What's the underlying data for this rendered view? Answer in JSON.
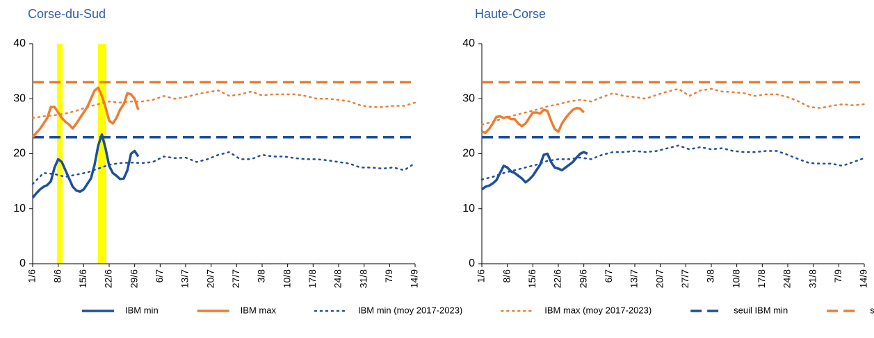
{
  "chart_data": [
    {
      "type": "line",
      "title": "Corse-du-Sud",
      "xlim": [
        0,
        105
      ],
      "ylim": [
        0,
        40
      ],
      "yticks": [
        0,
        10,
        20,
        30,
        40
      ],
      "xticks": [
        {
          "value": 0,
          "label": "1/6"
        },
        {
          "value": 7,
          "label": "8/6"
        },
        {
          "value": 14,
          "label": "15/6"
        },
        {
          "value": 21,
          "label": "22/6"
        },
        {
          "value": 28,
          "label": "29/6"
        },
        {
          "value": 35,
          "label": "6/7"
        },
        {
          "value": 42,
          "label": "13/7"
        },
        {
          "value": 49,
          "label": "20/7"
        },
        {
          "value": 56,
          "label": "27/7"
        },
        {
          "value": 63,
          "label": "3/8"
        },
        {
          "value": 70,
          "label": "10/8"
        },
        {
          "value": 77,
          "label": "17/8"
        },
        {
          "value": 84,
          "label": "24/8"
        },
        {
          "value": 91,
          "label": "31/8"
        },
        {
          "value": 98,
          "label": "7/9"
        },
        {
          "value": 105,
          "label": "14/9"
        }
      ],
      "bands": [
        {
          "from": 6.7,
          "to": 8.2,
          "color": "#ffff00"
        },
        {
          "from": 17.9,
          "to": 20.2,
          "color": "#ffff00"
        }
      ],
      "series": [
        {
          "name": "IBM min",
          "color": "#1f4e9c",
          "style": "solid",
          "x": [
            0,
            1,
            2,
            3,
            4,
            5,
            6,
            7,
            8,
            9,
            10,
            11,
            12,
            13,
            14,
            15,
            16,
            17,
            18,
            19,
            20,
            21,
            22,
            23,
            24,
            25,
            26,
            27,
            28,
            29
          ],
          "values": [
            12,
            12.8,
            13.5,
            14,
            14.3,
            15,
            17.5,
            19,
            18.5,
            17,
            15.5,
            14,
            13.3,
            13.1,
            13.5,
            14.5,
            15.5,
            18,
            21.5,
            23.5,
            21,
            17.8,
            16.5,
            16,
            15.4,
            15.5,
            17,
            20,
            20.5,
            19.5
          ]
        },
        {
          "name": "IBM max",
          "color": "#ed7d31",
          "style": "solid",
          "x": [
            0,
            1,
            2,
            3,
            4,
            5,
            6,
            7,
            8,
            9,
            10,
            11,
            12,
            13,
            14,
            15,
            16,
            17,
            18,
            19,
            20,
            21,
            22,
            23,
            24,
            25,
            26,
            27,
            28,
            29
          ],
          "values": [
            23,
            23.8,
            24.5,
            25.5,
            26.5,
            28.5,
            28.5,
            27.5,
            26.5,
            25.8,
            25.3,
            24.6,
            25.5,
            26.5,
            27.5,
            28.5,
            30,
            31.5,
            32,
            30.5,
            28.5,
            26,
            25.5,
            26.5,
            28,
            29,
            31,
            30.8,
            30,
            28
          ]
        },
        {
          "name": "IBM min (moy 2017-2023)",
          "color": "#1f4e9c",
          "style": "dotted",
          "x": [
            0,
            3,
            6,
            9,
            12,
            15,
            18,
            21,
            24,
            27,
            30,
            33,
            36,
            39,
            42,
            45,
            48,
            51,
            54,
            57,
            60,
            63,
            66,
            69,
            72,
            75,
            78,
            81,
            84,
            87,
            90,
            93,
            96,
            99,
            102,
            105
          ],
          "values": [
            14.5,
            16.5,
            16.3,
            15.8,
            16.2,
            16.6,
            17.3,
            18,
            18.3,
            18.4,
            18.3,
            18.5,
            19.5,
            19.2,
            19.3,
            18.5,
            19,
            19.8,
            20.3,
            19,
            19,
            19.8,
            19.5,
            19.5,
            19.2,
            19,
            19,
            18.8,
            18.5,
            18.2,
            17.5,
            17.5,
            17.3,
            17.5,
            17,
            18.3
          ]
        },
        {
          "name": "IBM max (moy 2017-2023)",
          "color": "#ed7d31",
          "style": "dotted",
          "x": [
            0,
            3,
            6,
            9,
            12,
            15,
            18,
            21,
            24,
            27,
            30,
            33,
            36,
            39,
            42,
            45,
            48,
            51,
            54,
            57,
            60,
            63,
            66,
            69,
            72,
            75,
            78,
            81,
            84,
            87,
            90,
            93,
            96,
            99,
            102,
            105
          ],
          "values": [
            26.5,
            26.8,
            27,
            27.3,
            27.8,
            28.5,
            29,
            29.5,
            29.3,
            29.5,
            29.5,
            29.8,
            30.5,
            30,
            30.3,
            30.8,
            31.2,
            31.5,
            30.5,
            30.8,
            31.3,
            30.6,
            30.8,
            30.8,
            30.8,
            30.5,
            30,
            30,
            29.8,
            29.5,
            28.8,
            28.5,
            28.5,
            28.7,
            28.7,
            29.3
          ]
        },
        {
          "name": "seuil IBM min",
          "color": "#1f4e9c",
          "style": "dashed",
          "x": [
            0,
            105
          ],
          "values": [
            23,
            23
          ]
        },
        {
          "name": "seuil IBM max",
          "color": "#ed7d31",
          "style": "dashed",
          "x": [
            0,
            105
          ],
          "values": [
            33,
            33
          ]
        }
      ]
    },
    {
      "type": "line",
      "title": "Haute-Corse",
      "xlim": [
        0,
        105
      ],
      "ylim": [
        0,
        40
      ],
      "yticks": [
        0,
        10,
        20,
        30,
        40
      ],
      "xticks": [
        {
          "value": 0,
          "label": "1/6"
        },
        {
          "value": 7,
          "label": "8/6"
        },
        {
          "value": 14,
          "label": "15/6"
        },
        {
          "value": 21,
          "label": "22/6"
        },
        {
          "value": 28,
          "label": "29/6"
        },
        {
          "value": 35,
          "label": "6/7"
        },
        {
          "value": 42,
          "label": "13/7"
        },
        {
          "value": 49,
          "label": "20/7"
        },
        {
          "value": 56,
          "label": "27/7"
        },
        {
          "value": 63,
          "label": "3/8"
        },
        {
          "value": 70,
          "label": "10/8"
        },
        {
          "value": 77,
          "label": "17/8"
        },
        {
          "value": 84,
          "label": "24/8"
        },
        {
          "value": 91,
          "label": "31/8"
        },
        {
          "value": 98,
          "label": "7/9"
        },
        {
          "value": 105,
          "label": "14/9"
        }
      ],
      "series": [
        {
          "color": "#1f4e9c",
          "style": "solid",
          "x": [
            0,
            1,
            2,
            3,
            4,
            5,
            6,
            7,
            8,
            9,
            10,
            11,
            12,
            13,
            14,
            15,
            16,
            17,
            18,
            19,
            20,
            21,
            22,
            23,
            24,
            25,
            26,
            27,
            28,
            29
          ],
          "values": [
            13.5,
            14,
            14.2,
            14.6,
            15.2,
            16.5,
            17.8,
            17.5,
            16.8,
            16.5,
            16,
            15.5,
            14.8,
            15.3,
            16,
            17,
            18,
            19.8,
            20,
            18.5,
            17.5,
            17.3,
            17,
            17.5,
            18,
            18.5,
            19.3,
            20,
            20.3,
            20
          ]
        },
        {
          "color": "#ed7d31",
          "style": "solid",
          "x": [
            0,
            1,
            2,
            3,
            4,
            5,
            6,
            7,
            8,
            9,
            10,
            11,
            12,
            13,
            14,
            15,
            16,
            17,
            18,
            19,
            20,
            21,
            22,
            23,
            24,
            25,
            26,
            27,
            28
          ],
          "values": [
            24,
            23.8,
            24.5,
            25.5,
            26.7,
            26.8,
            26.5,
            26.7,
            26.3,
            26.3,
            25.5,
            25,
            25.5,
            26.5,
            27.5,
            27.5,
            27.3,
            28,
            27.8,
            26,
            24.5,
            24,
            25.5,
            26.5,
            27.3,
            28,
            28.3,
            28.2,
            27.5
          ]
        },
        {
          "color": "#1f4e9c",
          "style": "dotted",
          "x": [
            0,
            3,
            6,
            9,
            12,
            15,
            18,
            21,
            24,
            27,
            30,
            33,
            36,
            39,
            42,
            45,
            48,
            51,
            54,
            57,
            60,
            63,
            66,
            69,
            72,
            75,
            78,
            81,
            84,
            87,
            90,
            93,
            96,
            99,
            102,
            105
          ],
          "values": [
            15.3,
            15.8,
            16.5,
            17,
            17.5,
            18,
            18.7,
            19,
            19,
            19.3,
            19,
            19.8,
            20.3,
            20.3,
            20.5,
            20.3,
            20.5,
            21,
            21.5,
            20.8,
            21.2,
            20.8,
            21,
            20.5,
            20.3,
            20.3,
            20.5,
            20.5,
            19.8,
            19,
            18.3,
            18.2,
            18.2,
            17.8,
            18.5,
            19.2
          ]
        },
        {
          "color": "#ed7d31",
          "style": "dotted",
          "x": [
            0,
            3,
            6,
            9,
            12,
            15,
            18,
            21,
            24,
            27,
            30,
            33,
            36,
            39,
            42,
            45,
            48,
            51,
            54,
            57,
            60,
            63,
            66,
            69,
            72,
            75,
            78,
            81,
            84,
            87,
            90,
            93,
            96,
            99,
            102,
            105
          ],
          "values": [
            25.3,
            25.8,
            26.5,
            27,
            27.5,
            28,
            28.6,
            29,
            29.5,
            29.8,
            29.5,
            30.3,
            31,
            30.5,
            30.3,
            30,
            30.7,
            31.3,
            31.8,
            30.5,
            31.5,
            31.8,
            31.3,
            31.2,
            31,
            30.5,
            30.8,
            30.8,
            30.3,
            29.5,
            28.5,
            28.3,
            28.7,
            29,
            28.8,
            29
          ]
        },
        {
          "color": "#1f4e9c",
          "style": "dashed",
          "x": [
            0,
            105
          ],
          "values": [
            23,
            23
          ]
        },
        {
          "color": "#ed7d31",
          "style": "dashed",
          "x": [
            0,
            105
          ],
          "values": [
            33,
            33
          ]
        }
      ]
    }
  ]
}
